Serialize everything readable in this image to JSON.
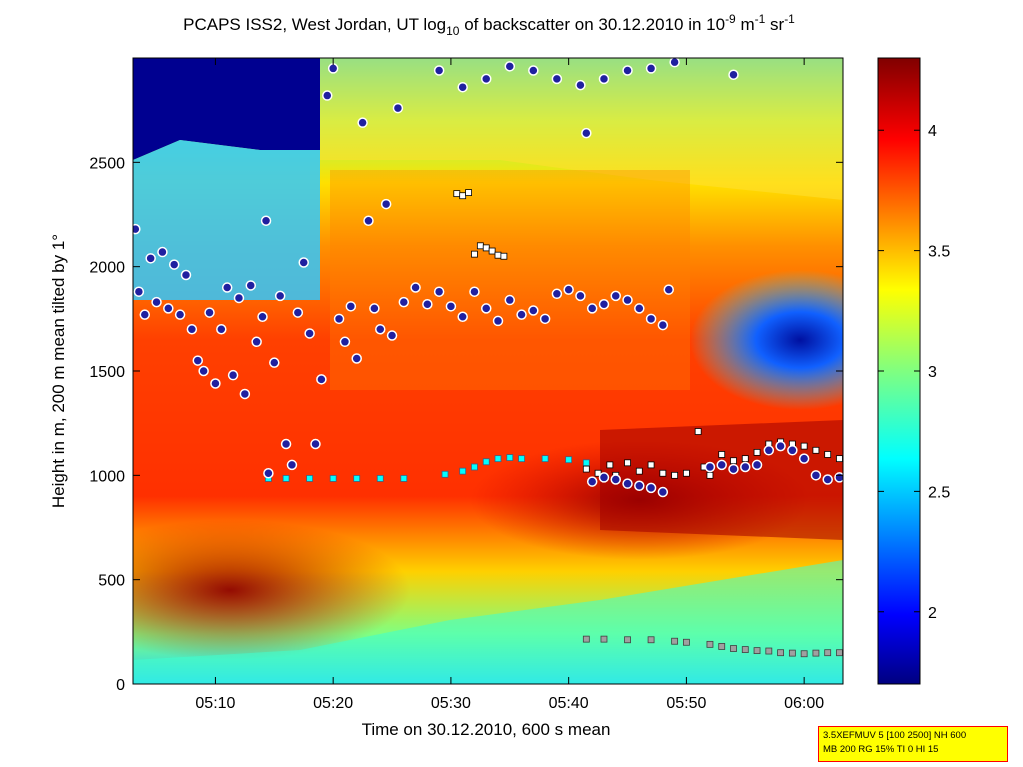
{
  "chart_data": {
    "type": "heatmap",
    "title": {
      "parts": [
        {
          "text": "PCAPS ISS2, West Jordan, UT log",
          "style": "normal"
        },
        {
          "text": "10",
          "style": "sub"
        },
        {
          "text": " of backscatter on 30.12.2010 in 10",
          "style": "normal"
        },
        {
          "text": "-9",
          "style": "sup"
        },
        {
          "text": " m",
          "style": "normal"
        },
        {
          "text": "-1",
          "style": "sup"
        },
        {
          "text": " sr",
          "style": "normal"
        },
        {
          "text": "-1",
          "style": "sup"
        }
      ]
    },
    "xlabel": "Time on 30.12.2010, 600 s mean",
    "ylabel": "Height in m, 200 m mean tilted by 1°",
    "x_ticks": [
      "05:10",
      "05:20",
      "05:30",
      "05:40",
      "05:50",
      "06:00"
    ],
    "x_tick_minutes": [
      10,
      20,
      30,
      40,
      50,
      60
    ],
    "xlim_minutes_after_0500": [
      3,
      63.3
    ],
    "ylim": [
      0,
      3000
    ],
    "y_ticks": [
      0,
      500,
      1000,
      1500,
      2000,
      2500
    ],
    "colorbar": {
      "range": [
        1.7,
        4.3
      ],
      "ticks": [
        2,
        2.5,
        3,
        3.5,
        4
      ],
      "tick_labels": [
        "2",
        "2.5",
        "3",
        "3.5",
        "4"
      ],
      "colormap": "jet"
    },
    "field_description_points": {
      "low_layer_core_value": 4.2,
      "upper_clear_value": 1.8
    },
    "mixing_layer_cyan": [
      [
        14.5,
        985
      ],
      [
        16,
        985
      ],
      [
        18,
        985
      ],
      [
        20,
        985
      ],
      [
        22,
        985
      ],
      [
        24,
        985
      ],
      [
        26,
        985
      ],
      [
        29.5,
        1005
      ],
      [
        31,
        1020
      ],
      [
        32,
        1040
      ],
      [
        33,
        1065
      ],
      [
        34,
        1080
      ],
      [
        35,
        1085
      ],
      [
        36,
        1080
      ],
      [
        38,
        1080
      ],
      [
        40,
        1075
      ],
      [
        41.5,
        1060
      ]
    ],
    "low_layer_gray": [
      [
        41.5,
        215
      ],
      [
        43,
        215
      ],
      [
        45,
        212
      ],
      [
        47,
        212
      ],
      [
        49,
        205
      ],
      [
        50,
        200
      ],
      [
        52,
        190
      ],
      [
        53,
        180
      ],
      [
        54,
        170
      ],
      [
        55,
        165
      ],
      [
        56,
        160
      ],
      [
        57,
        158
      ],
      [
        58,
        150
      ],
      [
        59,
        148
      ],
      [
        60,
        145
      ],
      [
        61,
        148
      ],
      [
        62,
        150
      ],
      [
        63,
        150
      ]
    ],
    "white_squares": [
      [
        30.5,
        2350
      ],
      [
        31,
        2340
      ],
      [
        31.5,
        2355
      ],
      [
        32,
        2060
      ],
      [
        32.5,
        2100
      ],
      [
        33,
        2090
      ],
      [
        33.5,
        2075
      ],
      [
        34,
        2055
      ],
      [
        34.5,
        2050
      ],
      [
        41.5,
        1030
      ],
      [
        42.5,
        1010
      ],
      [
        43.5,
        1050
      ],
      [
        44,
        1000
      ],
      [
        45,
        1060
      ],
      [
        46,
        1020
      ],
      [
        47,
        1050
      ],
      [
        48,
        1010
      ],
      [
        49,
        1000
      ],
      [
        50,
        1010
      ],
      [
        51,
        1210
      ],
      [
        51.5,
        1040
      ],
      [
        52,
        1000
      ],
      [
        53,
        1100
      ],
      [
        54,
        1070
      ],
      [
        55,
        1080
      ],
      [
        56,
        1110
      ],
      [
        57,
        1150
      ],
      [
        58,
        1160
      ],
      [
        59,
        1150
      ],
      [
        60,
        1140
      ],
      [
        61,
        1120
      ],
      [
        62,
        1100
      ],
      [
        63,
        1080
      ]
    ],
    "blue_dots": [
      [
        3.2,
        2180
      ],
      [
        3.5,
        1880
      ],
      [
        4,
        1770
      ],
      [
        4.5,
        2040
      ],
      [
        5,
        1830
      ],
      [
        5.5,
        2070
      ],
      [
        6,
        1800
      ],
      [
        6.5,
        2010
      ],
      [
        7,
        1770
      ],
      [
        7.5,
        1960
      ],
      [
        8,
        1700
      ],
      [
        8.5,
        1550
      ],
      [
        9,
        1500
      ],
      [
        9.5,
        1780
      ],
      [
        10,
        1440
      ],
      [
        10.5,
        1700
      ],
      [
        11,
        1900
      ],
      [
        11.5,
        1480
      ],
      [
        12,
        1850
      ],
      [
        12.5,
        1390
      ],
      [
        13,
        1910
      ],
      [
        13.5,
        1640
      ],
      [
        14,
        1760
      ],
      [
        14.3,
        2220
      ],
      [
        14.5,
        1010
      ],
      [
        15,
        1540
      ],
      [
        15.5,
        1860
      ],
      [
        16,
        1150
      ],
      [
        16.5,
        1050
      ],
      [
        17,
        1780
      ],
      [
        17.5,
        2020
      ],
      [
        18,
        1680
      ],
      [
        18.5,
        1150
      ],
      [
        19,
        1460
      ],
      [
        19.5,
        2820
      ],
      [
        20,
        2950
      ],
      [
        20.5,
        1750
      ],
      [
        21,
        1640
      ],
      [
        21.5,
        1810
      ],
      [
        22,
        1560
      ],
      [
        22.5,
        2690
      ],
      [
        23,
        2220
      ],
      [
        23.5,
        1800
      ],
      [
        24,
        1700
      ],
      [
        24.5,
        2300
      ],
      [
        25,
        1670
      ],
      [
        25.5,
        2760
      ],
      [
        26,
        1830
      ],
      [
        27,
        1900
      ],
      [
        28,
        1820
      ],
      [
        29,
        1880
      ],
      [
        30,
        1810
      ],
      [
        31,
        1760
      ],
      [
        32,
        1880
      ],
      [
        33,
        1800
      ],
      [
        34,
        1740
      ],
      [
        35,
        1840
      ],
      [
        36,
        1770
      ],
      [
        37,
        1790
      ],
      [
        38,
        1750
      ],
      [
        39,
        1870
      ],
      [
        40,
        1890
      ],
      [
        41,
        1860
      ],
      [
        41.5,
        2640
      ],
      [
        42,
        1800
      ],
      [
        43,
        1820
      ],
      [
        44,
        1860
      ],
      [
        45,
        1840
      ],
      [
        46,
        1800
      ],
      [
        47,
        1750
      ],
      [
        48,
        1720
      ],
      [
        48.5,
        1890
      ],
      [
        42,
        970
      ],
      [
        43,
        990
      ],
      [
        44,
        980
      ],
      [
        45,
        960
      ],
      [
        46,
        950
      ],
      [
        47,
        940
      ],
      [
        48,
        920
      ],
      [
        52,
        1040
      ],
      [
        53,
        1050
      ],
      [
        54,
        1030
      ],
      [
        55,
        1040
      ],
      [
        56,
        1050
      ],
      [
        57,
        1120
      ],
      [
        58,
        1140
      ],
      [
        59,
        1120
      ],
      [
        60,
        1080
      ],
      [
        61,
        1000
      ],
      [
        62,
        980
      ],
      [
        63,
        990
      ],
      [
        29,
        2940
      ],
      [
        31,
        2860
      ],
      [
        33,
        2900
      ],
      [
        35,
        2960
      ],
      [
        37,
        2940
      ],
      [
        39,
        2900
      ],
      [
        41,
        2870
      ],
      [
        43,
        2900
      ],
      [
        45,
        2940
      ],
      [
        47,
        2950
      ],
      [
        49,
        2980
      ],
      [
        54,
        2920
      ]
    ],
    "legend": "none",
    "info_text_lines": [
      "3.5XEFMUV 5 [100 2500] NH 600",
      "MB 200 RG 15% TI 0 HI 15"
    ]
  },
  "colors": {
    "cyan_marker": "#00ffff",
    "blue_marker_fill": "#2020a0",
    "blue_marker_edge": "#d060ff",
    "info_bg": "#ffff00",
    "info_border": "#ff0000"
  }
}
